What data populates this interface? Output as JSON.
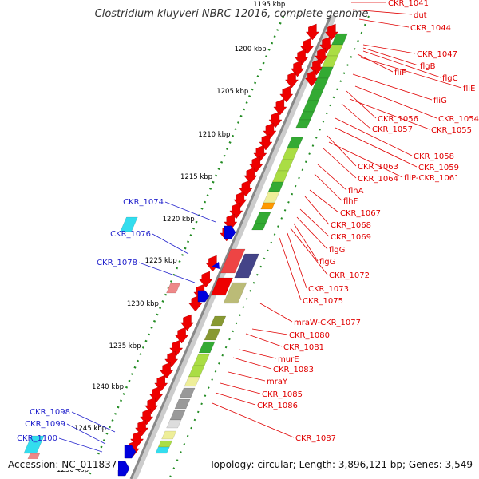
{
  "title": "Clostridium kluyveri NBRC 12016, complete genome",
  "footer": {
    "accession": "Accession: NC_011837",
    "summary": "Topology: circular; Length: 3,896,121 bp; Genes: 3,549"
  },
  "colors": {
    "gene_red": "#ee0000",
    "gene_blue": "#0000dd",
    "label_red": "#e00000",
    "label_blue": "#2222cc",
    "tick_green": "#228b22",
    "backbone": "#888888",
    "cog_green": "#33aa33",
    "cog_lightgreen": "#aadd44",
    "cog_yellow": "#eeee99",
    "cog_cyan": "#33ddee",
    "cog_gray": "#999999",
    "cog_olive": "#889933"
  },
  "ticks": [
    "1195 kbp",
    "1200 kbp",
    "1205 kbp",
    "1210 kbp",
    "1215 kbp",
    "1220 kbp",
    "1225 kbp",
    "1230 kbp",
    "1235 kbp",
    "1240 kbp",
    "1245 kbp",
    "1250 kbp"
  ],
  "right_labels": [
    "CKR_1041",
    "dut",
    "CKR_1044",
    "CKR_1047",
    "flgB",
    "flgC",
    "fliF",
    "fliE",
    "fliG",
    "CKR_1056",
    "CKR_1054",
    "CKR_1057",
    "CKR_1055",
    "CKR_1058",
    "CKR_1063",
    "CKR_1059",
    "CKR_1064",
    "fliP-CKR_1061",
    "flhA",
    "flhF",
    "CKR_1067",
    "CKR_1068",
    "CKR_1069",
    "flgG",
    "flgG",
    "CKR_1072",
    "CKR_1073",
    "CKR_1075",
    "mraW-CKR_1077",
    "CKR_1080",
    "CKR_1081",
    "murE",
    "CKR_1083",
    "mraY",
    "CKR_1085",
    "CKR_1086",
    "CKR_1087"
  ],
  "left_labels": [
    "CKR_1074",
    "CKR_1076",
    "CKR_1078",
    "CKR_1098",
    "CKR_1099",
    "CKR_1100"
  ]
}
